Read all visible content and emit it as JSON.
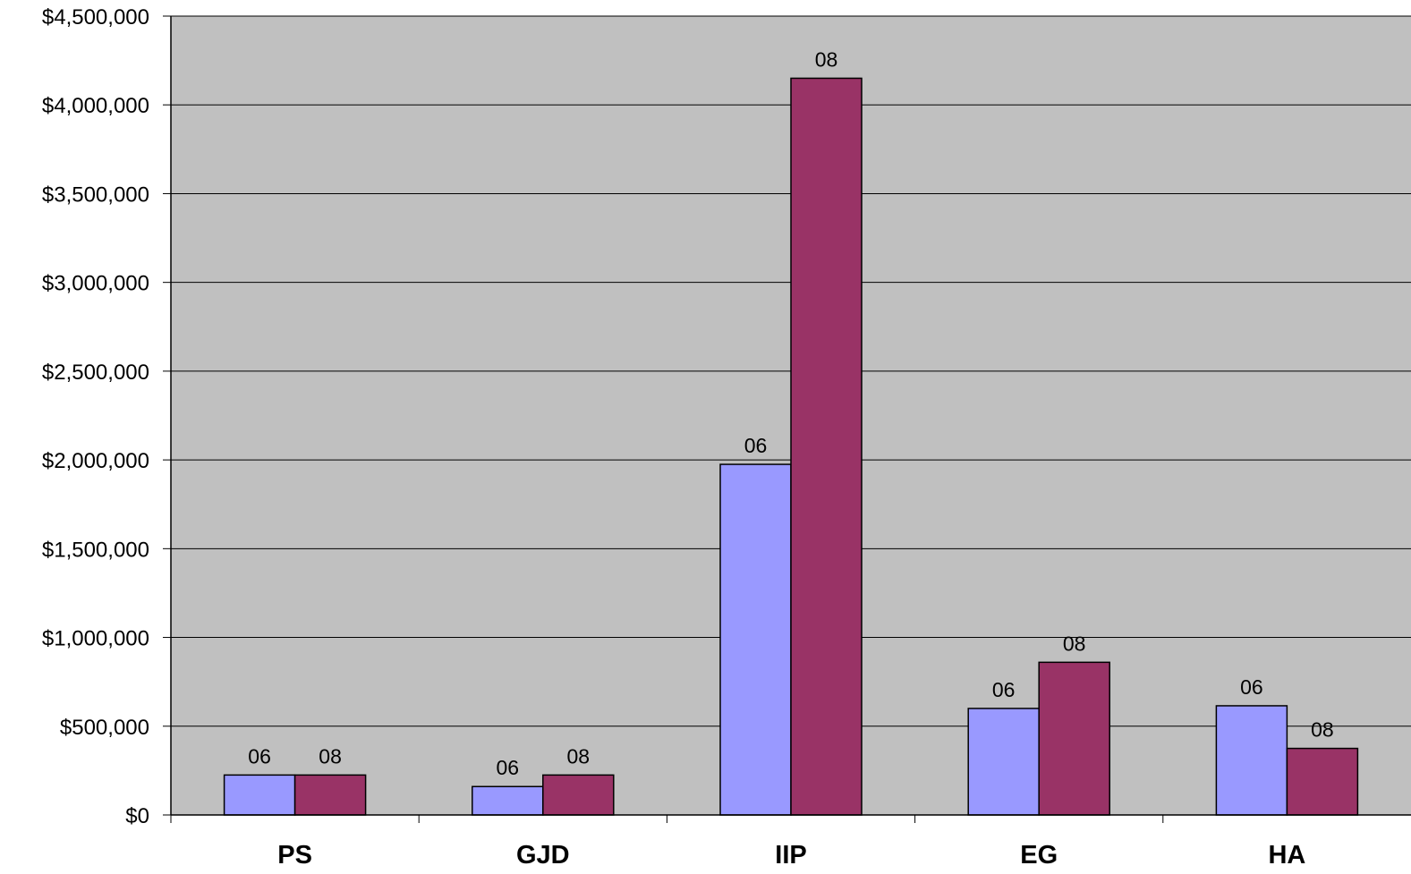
{
  "chart_data": {
    "type": "bar",
    "title": "",
    "xlabel": "",
    "ylabel": "",
    "categories": [
      "PS",
      "GJD",
      "IIP",
      "EG",
      "HA"
    ],
    "series": [
      {
        "label": "06",
        "color": "#9999FF",
        "values": [
          225000,
          160000,
          1975000,
          600000,
          615000
        ]
      },
      {
        "label": "08",
        "color": "#993366",
        "values": [
          225000,
          225000,
          4150000,
          860000,
          375000
        ]
      }
    ],
    "ylim": [
      0,
      4500000
    ],
    "ytick_step": 500000,
    "y_tick_labels": [
      "$0",
      "$500,000",
      "$1,000,000",
      "$1,500,000",
      "$2,000,000",
      "$2,500,000",
      "$3,000,000",
      "$3,500,000",
      "$4,000,000",
      "$4,500,000"
    ],
    "grid": true,
    "legend": "none",
    "plot_background": "#C0C0C0",
    "gridline_color": "#000000"
  }
}
